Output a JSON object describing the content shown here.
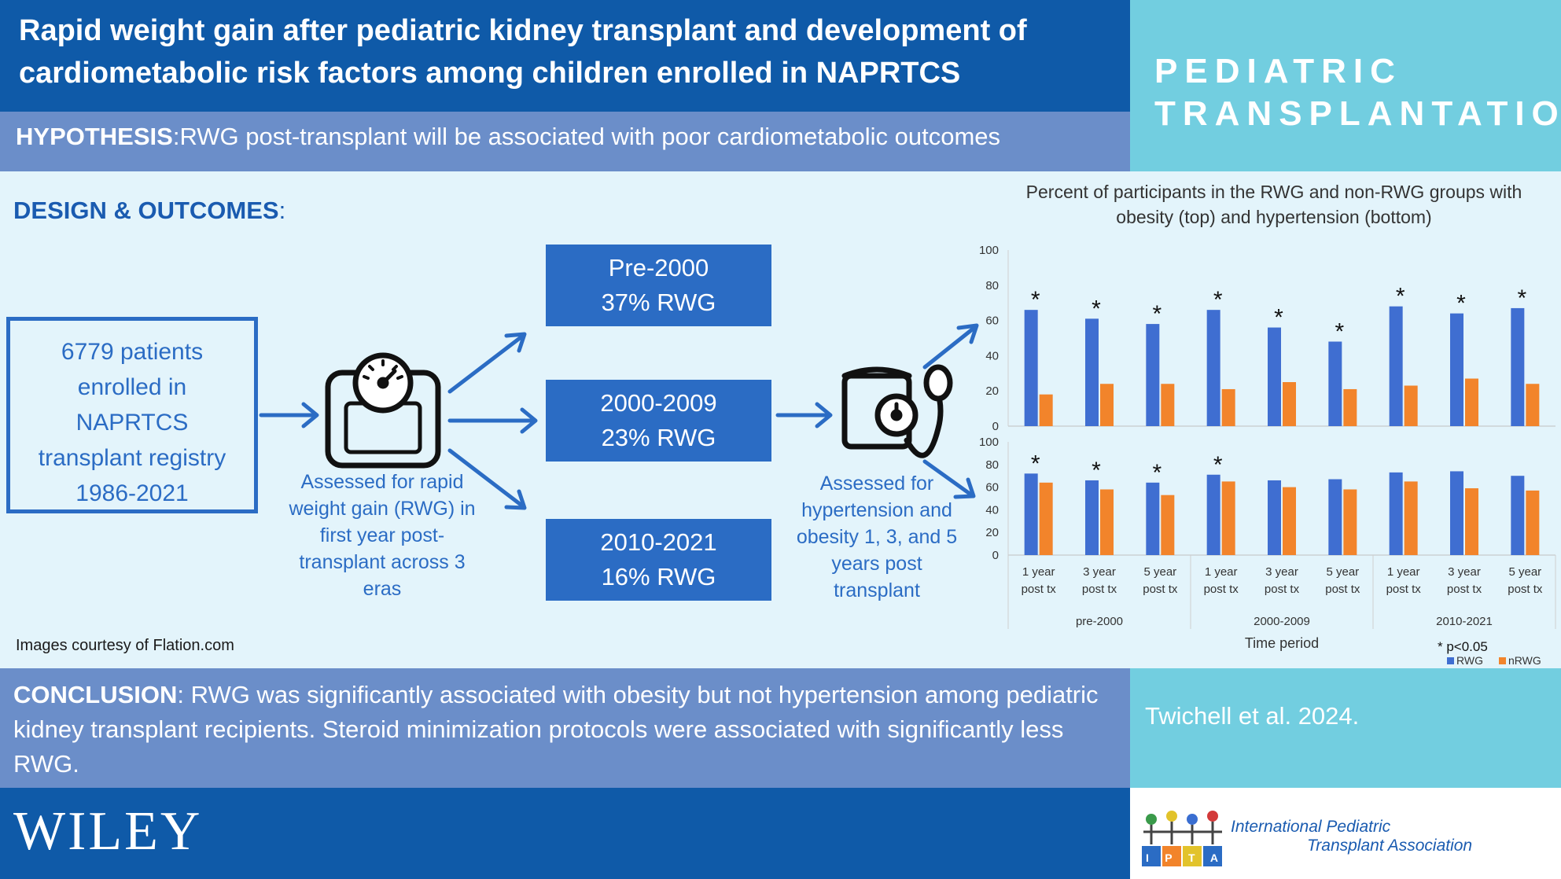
{
  "header": {
    "title": "Rapid weight gain after pediatric kidney transplant and development of cardiometabolic risk factors among children enrolled in NAPRTCS",
    "hypothesis_label": "HYPOTHESIS",
    "hypothesis_text": ":RWG post-transplant will be associated with poor cardiometabolic outcomes",
    "journal_line1": "PEDIATRIC",
    "journal_line2": "TRANSPLANTATION"
  },
  "design": {
    "title": "DESIGN & OUTCOMES",
    "title_suffix": ":",
    "patients_lines": [
      "6779 patients",
      "enrolled in",
      "NAPRTCS",
      "transplant registry",
      "1986-2021"
    ],
    "scale_caption": [
      "Assessed for rapid",
      "weight gain (RWG) in",
      "first year post-",
      "transplant across 3",
      "eras"
    ],
    "eras": [
      {
        "period": "Pre-2000",
        "rwg": "37% RWG"
      },
      {
        "period": "2000-2009",
        "rwg": "23% RWG"
      },
      {
        "period": "2010-2021",
        "rwg": "16% RWG"
      }
    ],
    "bp_caption": [
      "Assessed for",
      "hypertension and",
      "obesity 1, 3, and 5",
      "years post",
      "transplant"
    ],
    "icons": [
      "scale-icon",
      "blood-pressure-cuff-icon",
      "arrow-icon"
    ],
    "courtesy": "Images courtesy of Flation.com"
  },
  "chart_data": {
    "type": "bar",
    "title": "Percent of participants in the RWG and non-RWG groups with obesity (top) and hypertension (bottom)",
    "xlabel": "Time period",
    "categories": [
      "1 year post tx",
      "3 year post tx",
      "5 year post tx",
      "1 year post tx",
      "3 year post tx",
      "5 year post tx",
      "1 year post tx",
      "3 year post tx",
      "5 year post tx"
    ],
    "category_lines": [
      [
        "1 year",
        "post tx"
      ],
      [
        "3 year",
        "post tx"
      ],
      [
        "5 year",
        "post tx"
      ],
      [
        "1 year",
        "post tx"
      ],
      [
        "3 year",
        "post tx"
      ],
      [
        "5 year",
        "post tx"
      ],
      [
        "1 year",
        "post tx"
      ],
      [
        "3 year",
        "post tx"
      ],
      [
        "5 year",
        "post tx"
      ]
    ],
    "groups": [
      "pre-2000",
      "2000-2009",
      "2010-2021"
    ],
    "legend": [
      "RWG",
      "nRWG"
    ],
    "legend_position": "bottom-right",
    "significance_note": "* p<0.05",
    "colors": {
      "RWG": "#3f6ed1",
      "nRWG": "#f2842b"
    },
    "panels": [
      {
        "name": "obesity",
        "ylim": [
          0,
          100
        ],
        "yticks": [
          "0",
          "20",
          "40",
          "60",
          "80",
          "100"
        ],
        "series": [
          {
            "name": "RWG",
            "values": [
              66,
              61,
              58,
              66,
              56,
              48,
              68,
              64,
              67
            ]
          },
          {
            "name": "nRWG",
            "values": [
              18,
              24,
              24,
              21,
              25,
              21,
              23,
              27,
              24
            ]
          }
        ],
        "significant": [
          true,
          true,
          true,
          true,
          true,
          true,
          true,
          true,
          true
        ]
      },
      {
        "name": "hypertension",
        "ylim": [
          0,
          100
        ],
        "yticks": [
          "0",
          "20",
          "40",
          "60",
          "80",
          "100"
        ],
        "series": [
          {
            "name": "RWG",
            "values": [
              72,
              66,
              64,
              71,
              66,
              67,
              73,
              74,
              70
            ]
          },
          {
            "name": "nRWG",
            "values": [
              64,
              58,
              53,
              65,
              60,
              58,
              65,
              59,
              57
            ]
          }
        ],
        "significant": [
          true,
          true,
          true,
          true,
          false,
          false,
          false,
          false,
          false
        ]
      }
    ]
  },
  "conclusion": {
    "label": "CONCLUSION",
    "text": ": RWG was significantly associated with obesity but not hypertension among pediatric kidney transplant recipients.  Steroid minimization protocols were associated with significantly less RWG."
  },
  "footer": {
    "citation": "Twichell et al. 2024.",
    "publisher": "WILEY",
    "ipta_line1": "International Pediatric",
    "ipta_line2": "Transplant Association",
    "ipta_logo_text": "IPTA"
  }
}
